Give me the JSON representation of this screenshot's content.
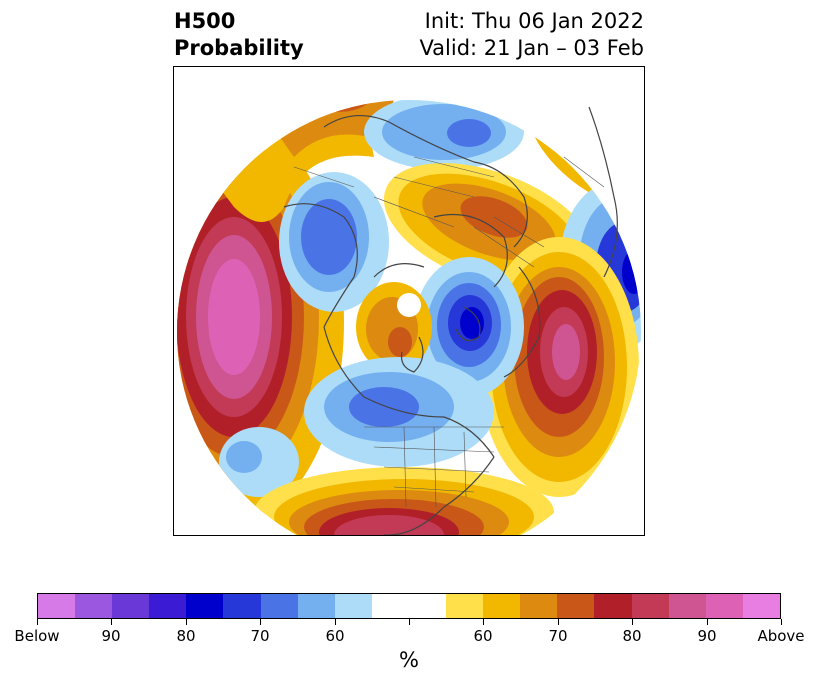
{
  "title": {
    "left_line1": "H500",
    "left_line2": "Probability",
    "right_line1": "Init: Thu 06 Jan 2022",
    "right_line2": "Valid: 21 Jan – 03 Feb"
  },
  "map": {
    "projection": "north-polar-stereographic",
    "features": [
      "coastlines",
      "country-borders",
      "us-state-borders"
    ]
  },
  "colorbar": {
    "unit_label": "%",
    "colors": [
      "#d67ae8",
      "#9b57e0",
      "#6a38d6",
      "#3b1bd3",
      "#0000cc",
      "#2738d8",
      "#4a74e6",
      "#74aff0",
      "#acdcf8",
      "#ffffff",
      "#ffffff",
      "#ffe04a",
      "#f2b800",
      "#dd8a10",
      "#c95818",
      "#b12028",
      "#c23a55",
      "#cf5592",
      "#dd62b6",
      "#e87ee2"
    ],
    "tick_labels": [
      "Below",
      "90",
      "80",
      "70",
      "60",
      "",
      "60",
      "70",
      "80",
      "90",
      "Above"
    ]
  }
}
